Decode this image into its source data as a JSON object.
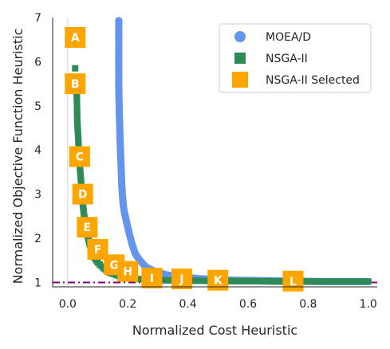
{
  "chart_data": {
    "type": "scatter",
    "xlabel": "Normalized Cost Heuristic",
    "ylabel": "Normalized Objective Function Heuristic",
    "xlim": [
      -0.05,
      1.03
    ],
    "ylim": [
      0.9,
      7.0
    ],
    "xticks": [
      "0.0",
      "0.2",
      "0.4",
      "0.6",
      "0.8",
      "1.0"
    ],
    "yticks": [
      "1",
      "2",
      "3",
      "4",
      "5",
      "6",
      "7"
    ],
    "xtick_values": [
      0.0,
      0.2,
      0.4,
      0.6,
      0.8,
      1.0
    ],
    "ytick_values": [
      1,
      2,
      3,
      4,
      5,
      6,
      7
    ],
    "grid": false,
    "legend": "top-right",
    "reference_lines": {
      "vertical_x": 0.0,
      "horizontal_y": 1.0,
      "horizontal_color": "#800080"
    },
    "series": [
      {
        "name": "MOEA/D",
        "marker": "circle",
        "color": "#6495ED",
        "x": [
          0.17,
          0.17,
          0.17,
          0.172,
          0.175,
          0.178,
          0.18,
          0.183,
          0.186,
          0.19,
          0.195,
          0.2,
          0.207,
          0.215,
          0.225,
          0.24,
          0.26,
          0.29,
          0.33,
          0.38,
          0.45,
          0.55,
          0.65,
          0.75,
          0.85,
          0.95,
          1.0
        ],
        "y": [
          7.0,
          6.2,
          5.4,
          4.8,
          4.1,
          3.6,
          3.2,
          2.9,
          2.7,
          2.55,
          2.4,
          2.25,
          2.05,
          1.85,
          1.65,
          1.5,
          1.35,
          1.25,
          1.17,
          1.12,
          1.08,
          1.05,
          1.04,
          1.03,
          1.02,
          1.02,
          1.02
        ]
      },
      {
        "name": "NSGA-II",
        "marker": "square",
        "color": "#2E8B57",
        "x": [
          0.025,
          0.03,
          0.032,
          0.035,
          0.038,
          0.042,
          0.046,
          0.05,
          0.055,
          0.06,
          0.065,
          0.072,
          0.08,
          0.09,
          0.1,
          0.12,
          0.14,
          0.17,
          0.2,
          0.25,
          0.3,
          0.4,
          0.5,
          0.6,
          0.7,
          0.8,
          0.9,
          1.0
        ],
        "y": [
          5.85,
          5.4,
          4.65,
          4.3,
          3.85,
          3.5,
          3.15,
          2.8,
          2.5,
          2.3,
          2.1,
          1.9,
          1.7,
          1.55,
          1.45,
          1.32,
          1.22,
          1.15,
          1.1,
          1.07,
          1.05,
          1.04,
          1.03,
          1.03,
          1.02,
          1.02,
          1.02,
          1.02
        ]
      }
    ],
    "selected": {
      "name": "NSGA-II Selected",
      "marker": "square",
      "color": "#FFA500",
      "points": [
        {
          "label": "A",
          "x": 0.025,
          "y": 6.55
        },
        {
          "label": "B",
          "x": 0.025,
          "y": 5.5
        },
        {
          "label": "C",
          "x": 0.04,
          "y": 3.85
        },
        {
          "label": "D",
          "x": 0.05,
          "y": 3.0
        },
        {
          "label": "E",
          "x": 0.065,
          "y": 2.25
        },
        {
          "label": "F",
          "x": 0.1,
          "y": 1.75
        },
        {
          "label": "G",
          "x": 0.155,
          "y": 1.4
        },
        {
          "label": "H",
          "x": 0.2,
          "y": 1.25
        },
        {
          "label": "I",
          "x": 0.28,
          "y": 1.1
        },
        {
          "label": "J",
          "x": 0.38,
          "y": 1.08
        },
        {
          "label": "K",
          "x": 0.5,
          "y": 1.05
        },
        {
          "label": "L",
          "x": 0.75,
          "y": 1.03
        }
      ]
    }
  }
}
